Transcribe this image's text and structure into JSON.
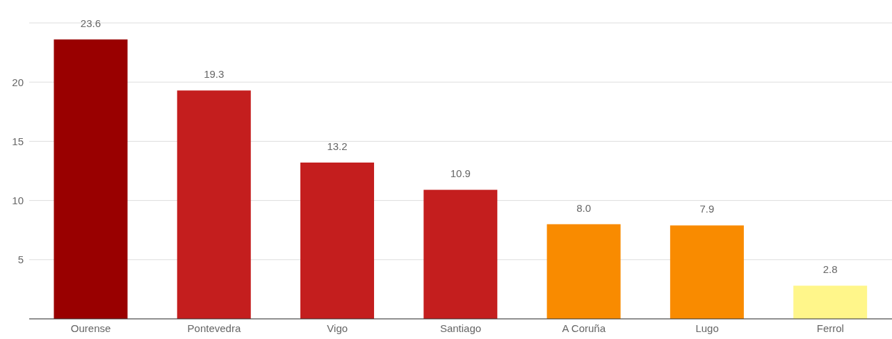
{
  "chart_data": {
    "type": "bar",
    "categories": [
      "Ourense",
      "Pontevedra",
      "Vigo",
      "Santiago",
      "A Coruña",
      "Lugo",
      "Ferrol"
    ],
    "values": [
      23.6,
      19.3,
      13.2,
      10.9,
      8.0,
      7.9,
      2.8
    ],
    "colors": [
      "#990000",
      "#c41e1e",
      "#c41e1e",
      "#c41e1e",
      "#f98b00",
      "#f98b00",
      "#fff68a"
    ],
    "value_labels": [
      "23.6",
      "19.3",
      "13.2",
      "10.9",
      "8.0",
      "7.9",
      "2.8"
    ],
    "ylim": [
      0,
      25
    ],
    "yticks": [
      5,
      10,
      15,
      20
    ],
    "grid": "y",
    "legend": false
  }
}
